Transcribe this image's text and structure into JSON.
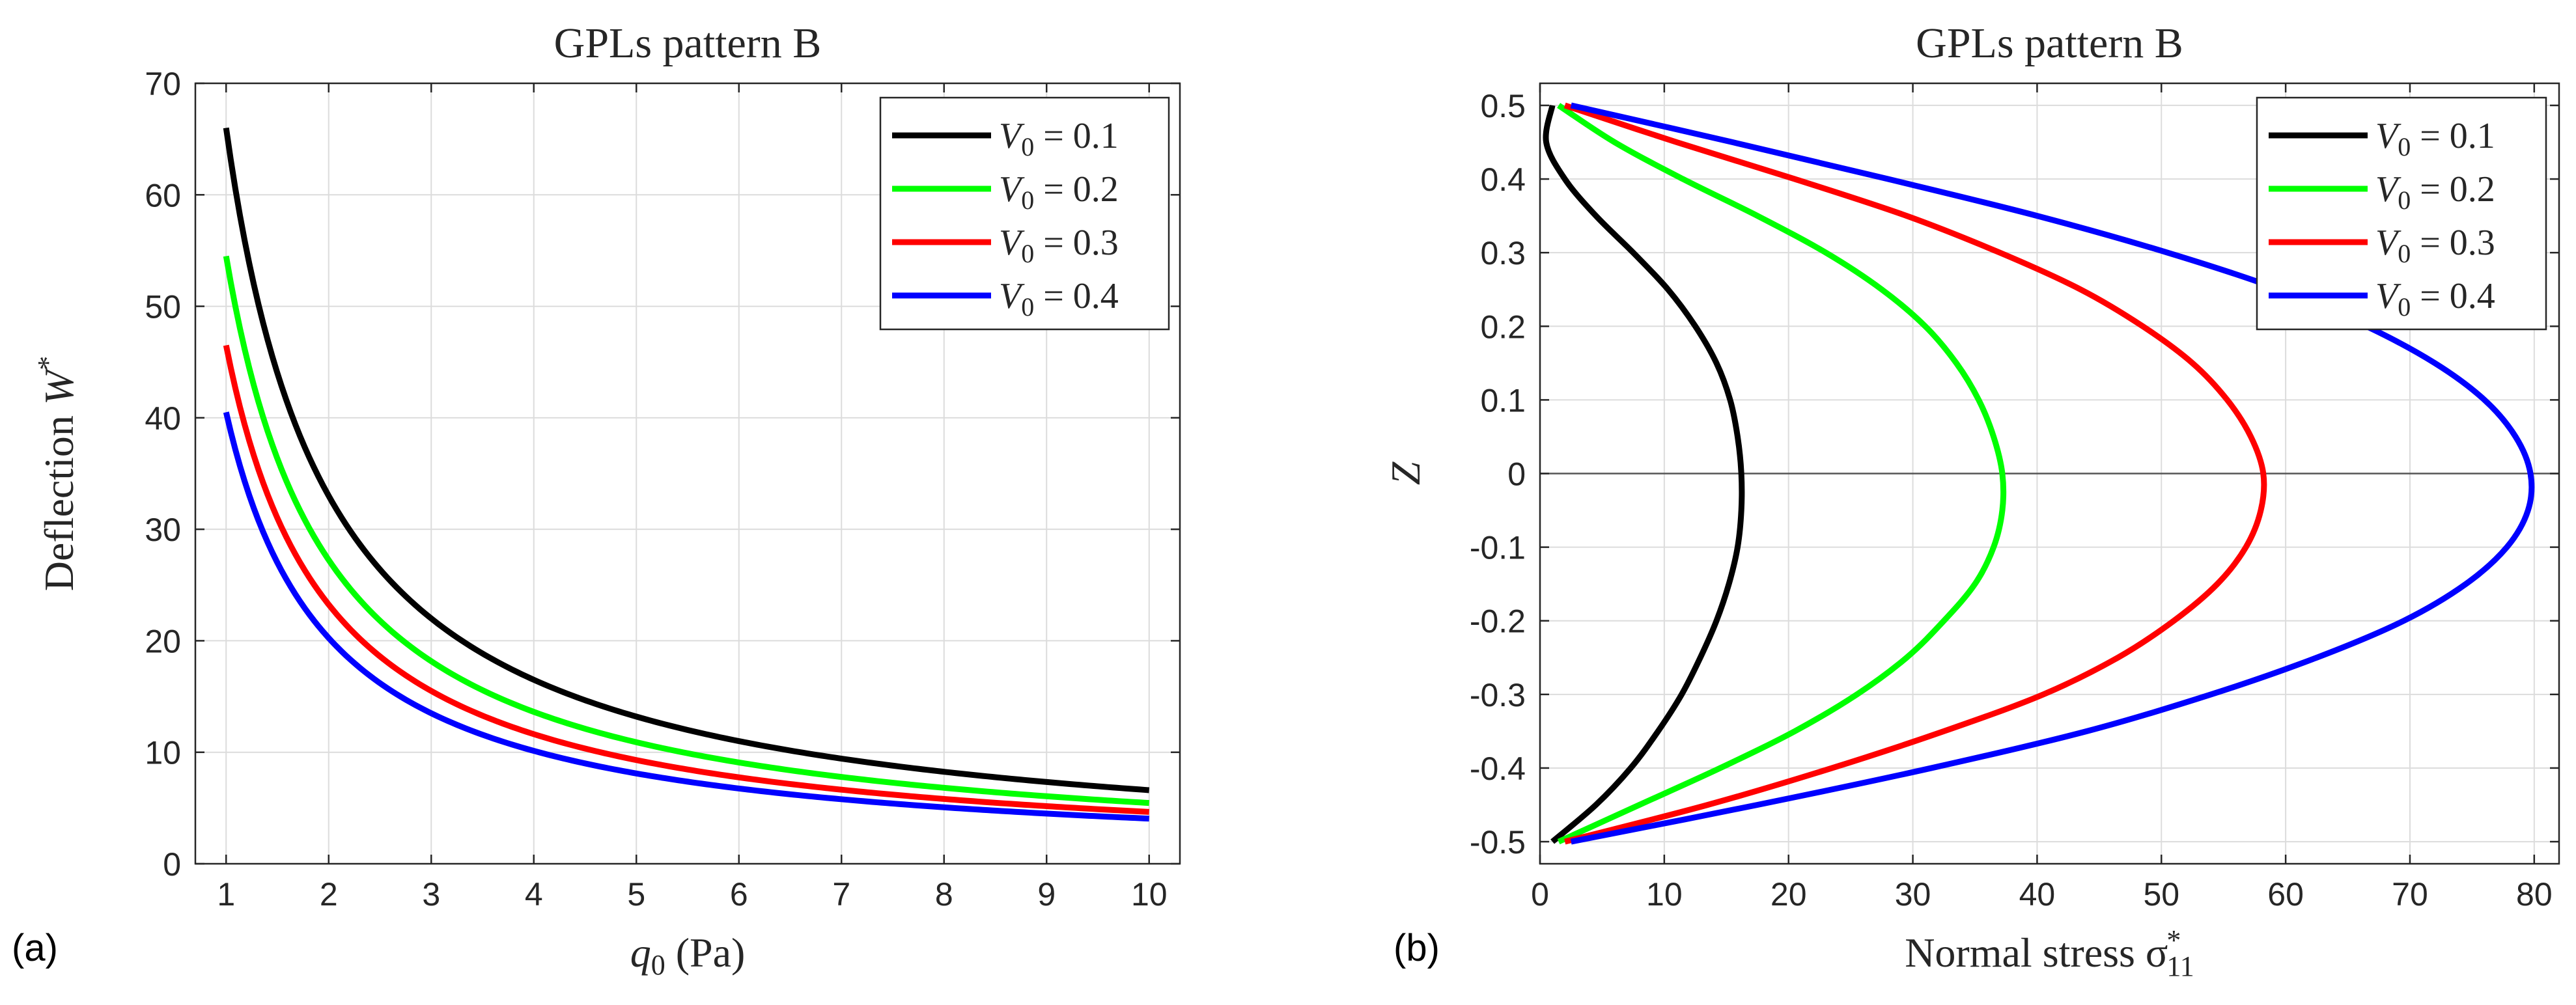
{
  "panels": [
    {
      "label": "(a)"
    },
    {
      "label": "(b)"
    }
  ],
  "chart_data": [
    {
      "type": "line",
      "title": "GPLs pattern B",
      "xlabel_main": "q",
      "xlabel_sub": "0",
      "xlabel_unit": "(Pa)",
      "ylabel_main": "Deflection W",
      "ylabel_sup": "*",
      "xlim": [
        0.7,
        10.3
      ],
      "ylim": [
        0,
        70
      ],
      "xticks": [
        1,
        2,
        3,
        4,
        5,
        6,
        7,
        8,
        9,
        10
      ],
      "yticks": [
        0,
        10,
        20,
        30,
        40,
        50,
        60,
        70
      ],
      "grid": true,
      "legend_position": "top-right",
      "series": [
        {
          "name": "V0 = 0.1",
          "legend_main": "V",
          "legend_sub": "0",
          "legend_val": "= 0.1",
          "color": "#000000",
          "model": "inverse",
          "a": 66.0,
          "x_range": [
            1,
            10
          ]
        },
        {
          "name": "V0 = 0.2",
          "legend_main": "V",
          "legend_sub": "0",
          "legend_val": "= 0.2",
          "color": "#00ff00",
          "model": "inverse",
          "a": 54.5,
          "x_range": [
            1,
            10
          ]
        },
        {
          "name": "V0 = 0.3",
          "legend_main": "V",
          "legend_sub": "0",
          "legend_val": "= 0.3",
          "color": "#ff0000",
          "model": "inverse",
          "a": 46.5,
          "x_range": [
            1,
            10
          ]
        },
        {
          "name": "V0 = 0.4",
          "legend_main": "V",
          "legend_sub": "0",
          "legend_val": "= 0.4",
          "color": "#0000ff",
          "model": "inverse",
          "a": 40.5,
          "x_range": [
            1,
            10
          ]
        }
      ]
    },
    {
      "type": "line",
      "title": "GPLs pattern B",
      "xlabel_main": "Normal stress σ",
      "xlabel_sub": "11",
      "xlabel_sup": "*",
      "ylabel_main": "Z",
      "xlim": [
        0,
        82
      ],
      "ylim": [
        -0.53,
        0.53
      ],
      "xticks": [
        0,
        10,
        20,
        30,
        40,
        50,
        60,
        70,
        80
      ],
      "yticks": [
        0.5,
        0.4,
        0.3,
        0.2,
        0.1,
        0,
        -0.1,
        -0.2,
        -0.3,
        -0.4,
        -0.5
      ],
      "ytick_labels": [
        "0.5",
        "0.4",
        "0.3",
        "0.2",
        "0.1",
        "0",
        "-0.1",
        "-0.2",
        "-0.3",
        "-0.4",
        "-0.5"
      ],
      "grid": true,
      "zero_line": true,
      "legend_position": "top-right",
      "series": [
        {
          "name": "V0 = 0.1",
          "legend_main": "V",
          "legend_sub": "0",
          "legend_val": "= 0.1",
          "color": "#000000",
          "points": [
            [
              1.0,
              0.5
            ],
            [
              0.5,
              0.45
            ],
            [
              2.0,
              0.4
            ],
            [
              4.5,
              0.35
            ],
            [
              7.5,
              0.3
            ],
            [
              10.3,
              0.25
            ],
            [
              12.5,
              0.2
            ],
            [
              14.2,
              0.15
            ],
            [
              15.3,
              0.1
            ],
            [
              15.9,
              0.05
            ],
            [
              16.2,
              0.0
            ],
            [
              16.2,
              -0.05
            ],
            [
              15.9,
              -0.1
            ],
            [
              15.2,
              -0.15
            ],
            [
              14.2,
              -0.2
            ],
            [
              12.9,
              -0.25
            ],
            [
              11.4,
              -0.3
            ],
            [
              9.5,
              -0.35
            ],
            [
              7.3,
              -0.4
            ],
            [
              4.5,
              -0.45
            ],
            [
              1.0,
              -0.5
            ]
          ]
        },
        {
          "name": "V0 = 0.2",
          "legend_main": "V",
          "legend_sub": "0",
          "legend_val": "= 0.2",
          "color": "#00ff00",
          "points": [
            [
              1.5,
              0.5
            ],
            [
              6.0,
              0.45
            ],
            [
              11.5,
              0.4
            ],
            [
              17.5,
              0.35
            ],
            [
              23.0,
              0.3
            ],
            [
              27.5,
              0.25
            ],
            [
              31.0,
              0.2
            ],
            [
              33.5,
              0.15
            ],
            [
              35.3,
              0.1
            ],
            [
              36.5,
              0.05
            ],
            [
              37.2,
              0.0
            ],
            [
              37.2,
              -0.05
            ],
            [
              36.5,
              -0.1
            ],
            [
              35.0,
              -0.15
            ],
            [
              32.5,
              -0.2
            ],
            [
              29.5,
              -0.25
            ],
            [
              25.5,
              -0.3
            ],
            [
              20.5,
              -0.35
            ],
            [
              14.5,
              -0.4
            ],
            [
              8.0,
              -0.45
            ],
            [
              1.5,
              -0.5
            ]
          ]
        },
        {
          "name": "V0 = 0.3",
          "legend_main": "V",
          "legend_sub": "0",
          "legend_val": "= 0.3",
          "color": "#ff0000",
          "points": [
            [
              2.0,
              0.5
            ],
            [
              11.0,
              0.45
            ],
            [
              20.5,
              0.4
            ],
            [
              29.5,
              0.35
            ],
            [
              37.0,
              0.3
            ],
            [
              43.5,
              0.25
            ],
            [
              48.5,
              0.2
            ],
            [
              52.5,
              0.15
            ],
            [
              55.3,
              0.1
            ],
            [
              57.2,
              0.05
            ],
            [
              58.2,
              0.0
            ],
            [
              58.0,
              -0.05
            ],
            [
              56.8,
              -0.1
            ],
            [
              54.5,
              -0.15
            ],
            [
              51.0,
              -0.2
            ],
            [
              46.5,
              -0.25
            ],
            [
              40.5,
              -0.3
            ],
            [
              32.5,
              -0.35
            ],
            [
              23.5,
              -0.4
            ],
            [
              13.5,
              -0.45
            ],
            [
              2.0,
              -0.5
            ]
          ]
        },
        {
          "name": "V0 = 0.4",
          "legend_main": "V",
          "legend_sub": "0",
          "legend_val": "= 0.4",
          "color": "#0000ff",
          "points": [
            [
              2.5,
              0.5
            ],
            [
              15.5,
              0.45
            ],
            [
              28.0,
              0.4
            ],
            [
              40.0,
              0.35
            ],
            [
              50.5,
              0.3
            ],
            [
              59.5,
              0.25
            ],
            [
              66.5,
              0.2
            ],
            [
              72.0,
              0.15
            ],
            [
              76.0,
              0.1
            ],
            [
              78.5,
              0.05
            ],
            [
              79.7,
              0.0
            ],
            [
              79.5,
              -0.05
            ],
            [
              77.8,
              -0.1
            ],
            [
              74.5,
              -0.15
            ],
            [
              69.5,
              -0.2
            ],
            [
              62.5,
              -0.25
            ],
            [
              54.0,
              -0.3
            ],
            [
              44.0,
              -0.35
            ],
            [
              31.5,
              -0.4
            ],
            [
              17.5,
              -0.45
            ],
            [
              2.5,
              -0.5
            ]
          ]
        }
      ]
    }
  ]
}
